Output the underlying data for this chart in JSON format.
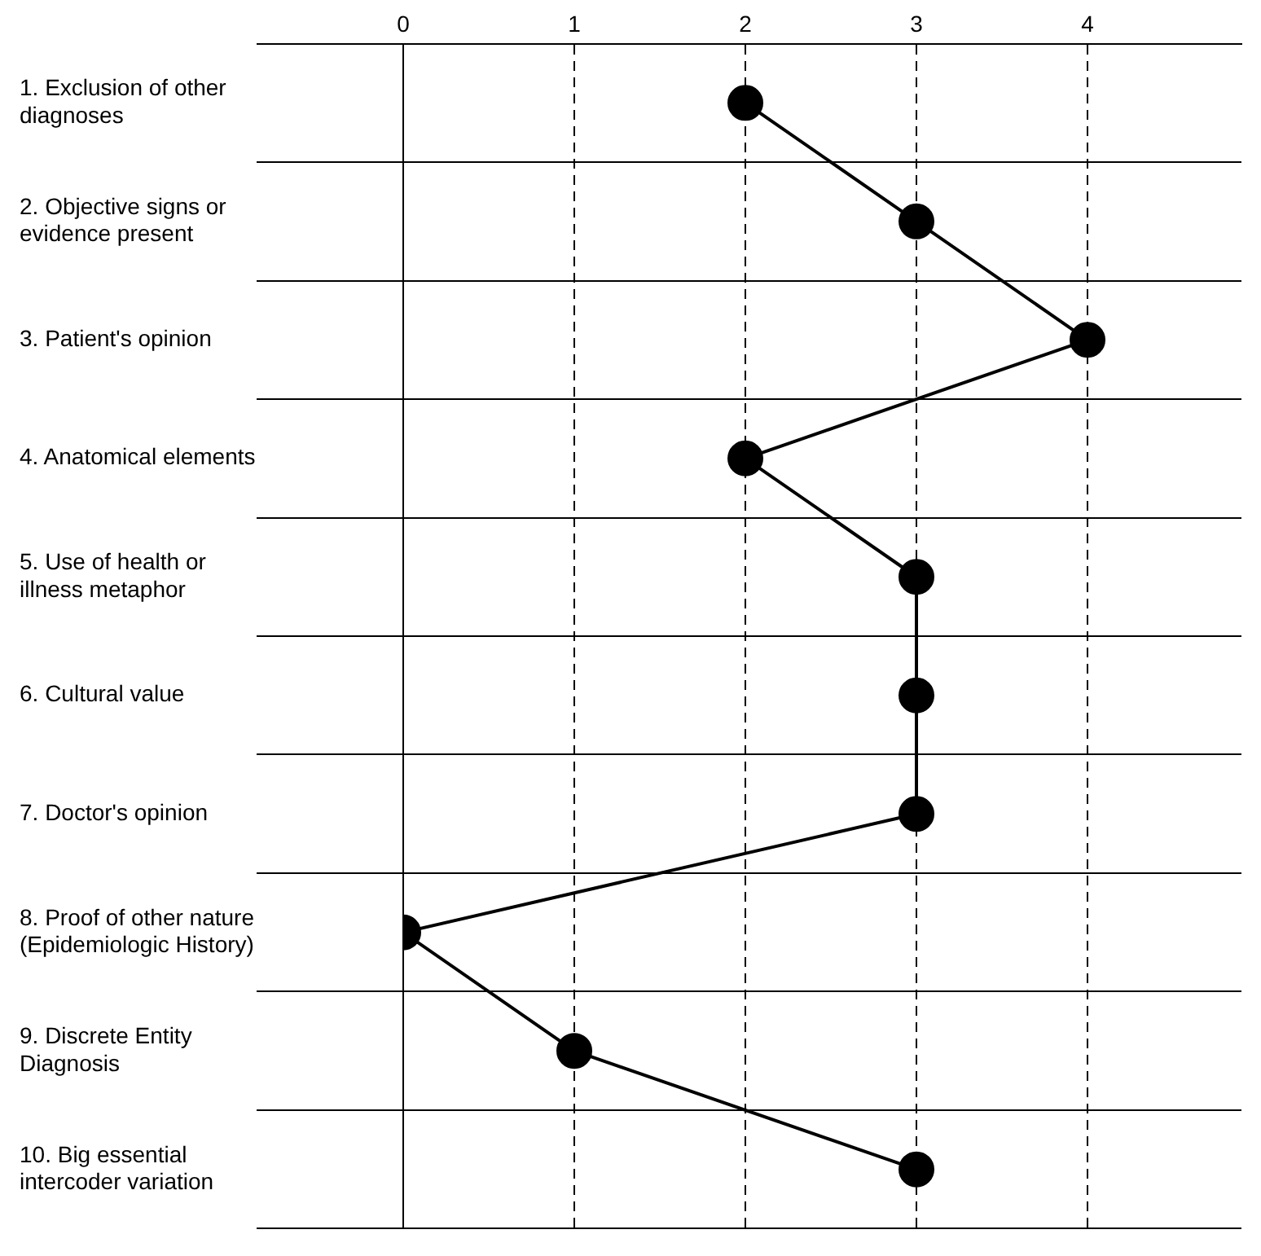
{
  "chart_data": {
    "type": "line",
    "orientation": "horizontal",
    "categories": [
      "1. Exclusion of other diagnoses",
      "2. Objective signs or evidence present",
      "3. Patient's opinion",
      "4. Anatomical elements",
      "5. Use of health or illness metaphor",
      "6. Cultural value",
      "7. Doctor's opinion",
      "8. Proof of other nature (Epidemiologic History)",
      "9. Discrete Entity Diagnosis",
      "10. Big essential intercoder variation"
    ],
    "series": [
      {
        "color": "#000000",
        "values": [
          2,
          3,
          4,
          2,
          3,
          3,
          3,
          0,
          1,
          3
        ]
      }
    ],
    "xlim": [
      0,
      4.9
    ],
    "xticks": [
      0,
      1,
      2,
      3,
      4
    ],
    "grid": true,
    "legend": false,
    "marker": "circle",
    "line_style": "solid"
  }
}
